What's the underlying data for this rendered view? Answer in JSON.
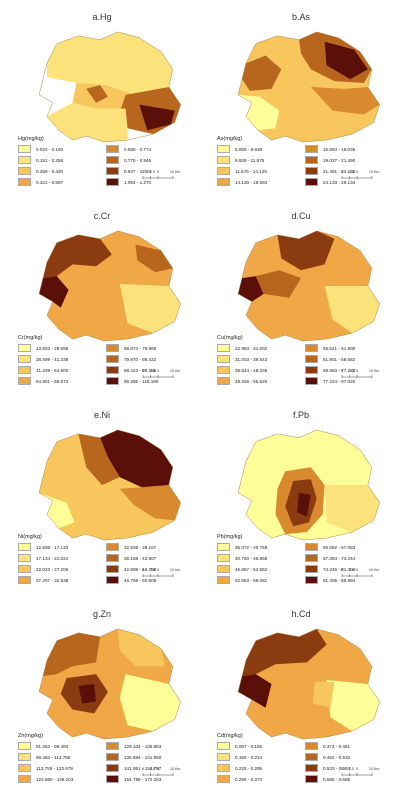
{
  "palette": [
    "#ffff99",
    "#fce27a",
    "#f7c65c",
    "#efa845",
    "#d98a2e",
    "#b8651d",
    "#8a3b10",
    "#5a1008"
  ],
  "scale": {
    "labels": [
      "0",
      "2.5",
      "5",
      "10 Km"
    ]
  },
  "panels": [
    {
      "title": "a.Hg",
      "legend_title": "Hg(mg/kg)",
      "classes": [
        "0.022 - 0.150",
        "0.151 - 0.258",
        "0.259 - 0.420",
        "0.421 - 0.597",
        "0.598 - 0.774",
        "0.775 - 0.946",
        "0.947 - 1.093",
        "1.094 - 1.270"
      ]
    },
    {
      "title": "b.As",
      "legend_title": "As(mg/kg)",
      "classes": [
        "5.069 - 8.938",
        "8.939 - 11.675",
        "11.676 - 14.129",
        "14.130 - 16.583",
        "16.584 - 19.036",
        "19.037 - 21.490",
        "21.491 - 24.132",
        "24.133 - 29.134"
      ]
    },
    {
      "title": "c.Cr",
      "legend_title": "Cr(mg/kg)",
      "classes": [
        "13.803 - 28.598",
        "28.599 - 41.338",
        "41.339 - 54.900",
        "54.901 - 68.873",
        "68.874 - 79.969",
        "79.970 - 89.422",
        "89.423 - 99.285",
        "99.286 - 118.190"
      ]
    },
    {
      "title": "d.Cu",
      "legend_title": "Cu(mg/kg)",
      "classes": [
        "22.983 - 31.002",
        "31.003 - 39.543",
        "39.544 - 48.335",
        "48.336 - 55.620",
        "55.621 - 61.900",
        "61.901 - 68.682",
        "68.683 - 77.223",
        "77.224 - 97.020"
      ]
    },
    {
      "title": "e.Ni",
      "legend_title": "Ni(mg/kg)",
      "classes": [
        "12.838 - 17.133",
        "17.134 - 22.022",
        "22.023 - 27.206",
        "27.207 - 32.538",
        "32.539 - 38.167",
        "38.168 - 42.907",
        "42.908 - 46.758",
        "46.759 - 50.609"
      ]
    },
    {
      "title": "f.Pb",
      "legend_title": "Pb(mg/kg)",
      "classes": [
        "35.072 - 40.759",
        "40.760 - 46.866",
        "46.867 - 52.552",
        "52.553 - 59.081",
        "59.082 - 67.083",
        "67.084 - 74.244",
        "74.245 - 81.404",
        "81.405 - 86.884"
      ]
    },
    {
      "title": "g.Zn",
      "legend_title": "Zn(mg/kg)",
      "classes": [
        "81.283 - 99.483",
        "99.484 - 113.758",
        "113.759 - 122.679",
        "122.680 - 129.103",
        "129.104 - 135.883",
        "135.884 - 141.950",
        "141.951 - 154.797",
        "154.798 - 172.283"
      ]
    },
    {
      "title": "h.Cd",
      "legend_title": "Cd(mg/kg)",
      "classes": [
        "0.087 - 0.165",
        "0.166 - 0.224",
        "0.225 - 0.295",
        "0.296 - 0.373",
        "0.374 - 0.461",
        "0.462 - 0.532",
        "0.533 - 0.584",
        "0.585 - 0.688"
      ]
    }
  ]
}
